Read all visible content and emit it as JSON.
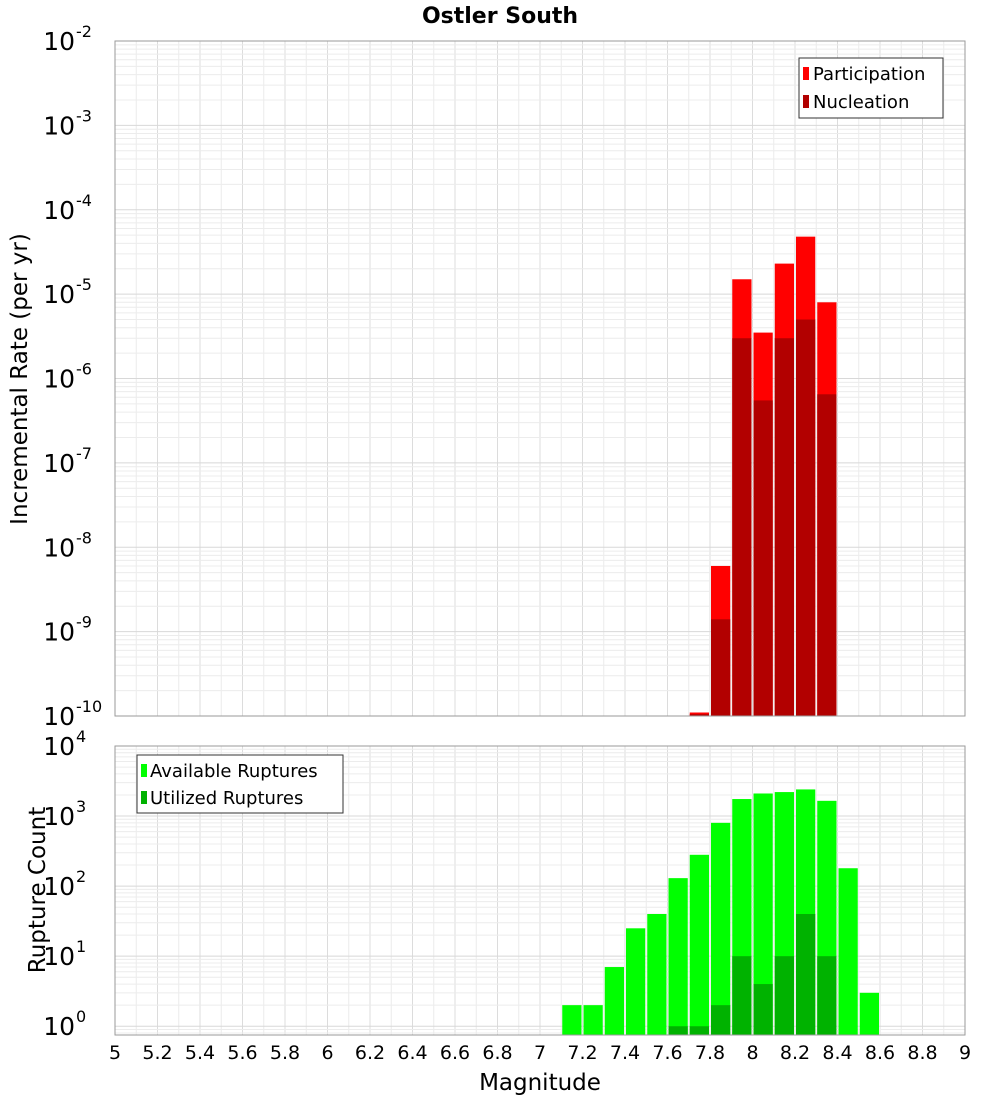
{
  "chart_data": [
    {
      "type": "bar",
      "title": "Ostler South",
      "xlabel": "",
      "ylabel": "Incremental Rate (per yr)",
      "yscale": "log",
      "xlim": [
        5,
        9
      ],
      "ylim": [
        1e-10,
        0.01
      ],
      "ytick_exponents": [
        -10,
        -9,
        -8,
        -7,
        -6,
        -5,
        -4,
        -3,
        -2
      ],
      "bar_width": 0.1,
      "legend_position": "top-right",
      "series": [
        {
          "name": "Participation",
          "color": "#ff0000",
          "x": [
            7.75,
            7.85,
            7.95,
            8.05,
            8.15,
            8.25,
            8.35
          ],
          "values": [
            1.1e-10,
            6e-09,
            1.5e-05,
            3.5e-06,
            2.3e-05,
            4.8e-05,
            8e-06
          ]
        },
        {
          "name": "Nucleation",
          "color": "#b20000",
          "x": [
            7.75,
            7.85,
            7.95,
            8.05,
            8.15,
            8.25,
            8.35
          ],
          "values": [
            1.05e-10,
            1.4e-09,
            3e-06,
            5.5e-07,
            3e-06,
            5e-06,
            6.5e-07
          ]
        }
      ]
    },
    {
      "type": "bar",
      "title": "",
      "xlabel": "Magnitude",
      "ylabel": "Rupture Count",
      "yscale": "log",
      "xlim": [
        5,
        9
      ],
      "ylim": [
        0.75,
        10000
      ],
      "ytick_exponents": [
        0,
        1,
        2,
        3,
        4
      ],
      "xticks": [
        "5",
        "5.2",
        "5.4",
        "5.6",
        "5.8",
        "6",
        "6.2",
        "6.4",
        "6.6",
        "6.8",
        "7",
        "7.2",
        "7.4",
        "7.6",
        "7.8",
        "8",
        "8.2",
        "8.4",
        "8.6",
        "8.8",
        "9"
      ],
      "bar_width": 0.1,
      "legend_position": "top-left",
      "series": [
        {
          "name": "Available Ruptures",
          "color": "#00ff00",
          "x": [
            7.15,
            7.25,
            7.35,
            7.45,
            7.55,
            7.65,
            7.75,
            7.85,
            7.95,
            8.05,
            8.15,
            8.25,
            8.35,
            8.45,
            8.55
          ],
          "values": [
            2,
            2,
            7,
            25,
            40,
            130,
            280,
            800,
            1750,
            2100,
            2200,
            2400,
            1650,
            180,
            3
          ]
        },
        {
          "name": "Utilized Ruptures",
          "color": "#00b200",
          "x": [
            7.65,
            7.75,
            7.85,
            7.95,
            8.05,
            8.15,
            8.25,
            8.35
          ],
          "values": [
            1,
            1,
            2,
            10,
            4,
            10,
            40,
            10
          ]
        }
      ]
    }
  ]
}
